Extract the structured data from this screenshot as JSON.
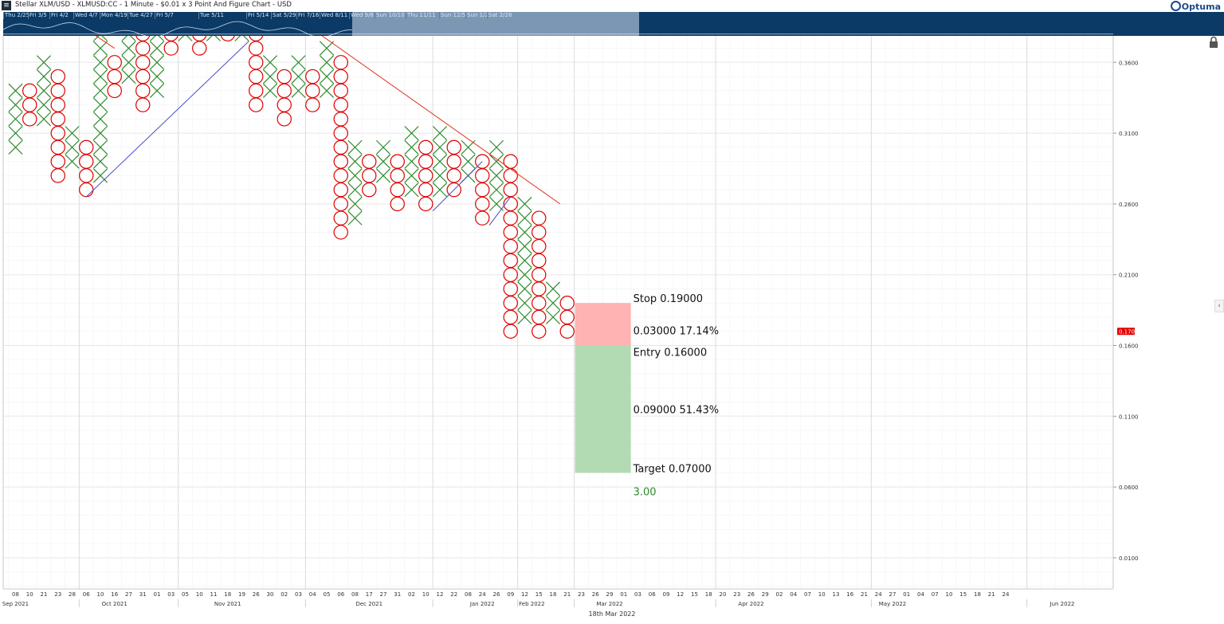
{
  "window": {
    "title": "Stellar XLM/USD - XLMUSD:CC - 1 Minute - $0.01 x 3 Point And Figure Chart - USD",
    "logo": "Optuma"
  },
  "navigator": {
    "labels": [
      "Thu 2/25",
      "Fri 3/5",
      "Fri 4/2",
      "Wed 4/7",
      "Mon 4/19",
      "Tue 4/27",
      "Fri 5/7",
      "Tue 5/11",
      "Fri 5/14",
      "Sat 5/29",
      "Fri 7/16",
      "Wed 8/11",
      "Wed 9/8",
      "Sun 10/10",
      "Thu 11/11",
      "Sun 12/5",
      "Sun 1/2",
      "Sat 2/26"
    ],
    "colors": {
      "background": "#0b3a66",
      "window": "#7b97b3"
    }
  },
  "footer": {
    "date": "18th Mar 2022"
  },
  "icons": {
    "lock": "lock-icon",
    "collapse": "chevron-left-icon",
    "app": "app-menu-icon"
  },
  "chart_data": {
    "type": "point-and-figure",
    "box_size": 0.01,
    "reversal": 3,
    "title": "Stellar XLM/USD - XLMUSD:CC - 1 Minute - $0.01 x 3 Point And Figure Chart - USD",
    "ylim": [
      -0.02,
      0.38
    ],
    "y_ticks": [
      "0.3600",
      "0.3100",
      "0.2600",
      "0.2100",
      "0.1600",
      "0.1100",
      "0.0600",
      "0.0100"
    ],
    "y_tick_values": [
      0.36,
      0.31,
      0.26,
      0.21,
      0.16,
      0.11,
      0.06,
      0.01
    ],
    "x_day_ticks": [
      "08",
      "10",
      "21",
      "23",
      "28",
      "06",
      "10",
      "16",
      "27",
      "31",
      "01",
      "03",
      "05",
      "10",
      "11",
      "18",
      "19",
      "26",
      "30",
      "02",
      "03",
      "04",
      "05",
      "06",
      "08",
      "17",
      "27",
      "31",
      "02",
      "10",
      "12",
      "22",
      "08",
      "24",
      "26",
      "09",
      "12",
      "15",
      "18",
      "21",
      "23",
      "26",
      "29",
      "01",
      "03",
      "06",
      "09",
      "12",
      "15",
      "18",
      "20",
      "23",
      "26",
      "29",
      "02",
      "04",
      "07",
      "10",
      "13",
      "16",
      "21",
      "24",
      "27",
      "01",
      "04",
      "07",
      "10",
      "15",
      "18",
      "21",
      "24"
    ],
    "x_month_ticks": [
      {
        "label": "Sep 2021",
        "col": 0
      },
      {
        "label": "Oct 2021",
        "col": 7
      },
      {
        "label": "Nov 2021",
        "col": 15
      },
      {
        "label": "Dec 2021",
        "col": 25
      },
      {
        "label": "Jan 2022",
        "col": 33
      },
      {
        "label": "Feb 2022",
        "col": 36.5
      },
      {
        "label": "Mar 2022",
        "col": 42
      },
      {
        "label": "Apr 2022",
        "col": 52
      },
      {
        "label": "May 2022",
        "col": 62
      },
      {
        "label": "Jun 2022",
        "col": 74
      }
    ],
    "columns": [
      {
        "type": "X",
        "low": 0.3,
        "high": 0.34
      },
      {
        "type": "O",
        "low": 0.32,
        "high": 0.34
      },
      {
        "type": "X",
        "low": 0.32,
        "high": 0.36
      },
      {
        "type": "O",
        "low": 0.28,
        "high": 0.35
      },
      {
        "type": "X",
        "low": 0.29,
        "high": 0.31
      },
      {
        "type": "O",
        "low": 0.27,
        "high": 0.3
      },
      {
        "type": "X",
        "low": 0.28,
        "high": 0.38
      },
      {
        "type": "O",
        "low": 0.34,
        "high": 0.36
      },
      {
        "type": "X",
        "low": 0.35,
        "high": 0.38
      },
      {
        "type": "O",
        "low": 0.33,
        "high": 0.38
      },
      {
        "type": "X",
        "low": 0.34,
        "high": 0.38
      },
      {
        "type": "O",
        "low": 0.37,
        "high": 0.38
      },
      {
        "type": "X",
        "low": 0.38,
        "high": 0.38
      },
      {
        "type": "O",
        "low": 0.37,
        "high": 0.38
      },
      {
        "type": "X",
        "low": 0.38,
        "high": 0.38
      },
      {
        "type": "O",
        "low": 0.38,
        "high": 0.38
      },
      {
        "type": "X",
        "low": 0.38,
        "high": 0.38
      },
      {
        "type": "O",
        "low": 0.33,
        "high": 0.38
      },
      {
        "type": "X",
        "low": 0.34,
        "high": 0.36
      },
      {
        "type": "O",
        "low": 0.32,
        "high": 0.35
      },
      {
        "type": "X",
        "low": 0.34,
        "high": 0.36
      },
      {
        "type": "O",
        "low": 0.33,
        "high": 0.35
      },
      {
        "type": "X",
        "low": 0.34,
        "high": 0.37
      },
      {
        "type": "O",
        "low": 0.24,
        "high": 0.36
      },
      {
        "type": "X",
        "low": 0.25,
        "high": 0.3
      },
      {
        "type": "O",
        "low": 0.27,
        "high": 0.29
      },
      {
        "type": "X",
        "low": 0.28,
        "high": 0.3
      },
      {
        "type": "O",
        "low": 0.26,
        "high": 0.29
      },
      {
        "type": "X",
        "low": 0.27,
        "high": 0.31
      },
      {
        "type": "O",
        "low": 0.26,
        "high": 0.3
      },
      {
        "type": "X",
        "low": 0.27,
        "high": 0.31
      },
      {
        "type": "O",
        "low": 0.27,
        "high": 0.3
      },
      {
        "type": "X",
        "low": 0.28,
        "high": 0.3
      },
      {
        "type": "O",
        "low": 0.25,
        "high": 0.29
      },
      {
        "type": "X",
        "low": 0.26,
        "high": 0.3
      },
      {
        "type": "O",
        "low": 0.17,
        "high": 0.29
      },
      {
        "type": "X",
        "low": 0.18,
        "high": 0.26
      },
      {
        "type": "O",
        "low": 0.17,
        "high": 0.25
      },
      {
        "type": "X",
        "low": 0.18,
        "high": 0.2
      },
      {
        "type": "O",
        "low": 0.17,
        "high": 0.19
      }
    ],
    "trend_lines": [
      {
        "kind": "support",
        "color": "#4b4bcc",
        "from": {
          "col": 5,
          "y": 0.265
        },
        "to": {
          "col": 16.5,
          "y": 0.375
        }
      },
      {
        "kind": "resistance",
        "color": "#e0341e",
        "from": {
          "col": 5.5,
          "y": 0.38
        },
        "to": {
          "col": 7,
          "y": 0.37
        }
      },
      {
        "kind": "resistance",
        "color": "#e0341e",
        "from": {
          "col": 21.5,
          "y": 0.38
        },
        "to": {
          "col": 38.5,
          "y": 0.26
        }
      },
      {
        "kind": "support",
        "color": "#4b4bcc",
        "from": {
          "col": 29.5,
          "y": 0.255
        },
        "to": {
          "col": 33,
          "y": 0.29
        }
      },
      {
        "kind": "support",
        "color": "#4b4bcc",
        "from": {
          "col": 33.5,
          "y": 0.245
        },
        "to": {
          "col": 35,
          "y": 0.265
        }
      }
    ],
    "trade": {
      "stop_text": "Stop   0.19000",
      "risk_text": "0.03000   17.14%",
      "entry_text": "Entry   0.16000",
      "reward_text": "0.09000   51.43%",
      "target_text": "Target   0.07000",
      "ratio_text": "3.00",
      "stop": 0.19,
      "entry": 0.16,
      "target": 0.07,
      "start_col": 39.5,
      "end_col": 43.5,
      "risk_color": "#ffb3b3",
      "reward_color": "#b3dbb3",
      "ratio_color": "#2e8b2e"
    },
    "last_price": {
      "label": "0.1700",
      "value": 0.17,
      "color": "#e00000"
    },
    "x_color": "#2e8b2e",
    "o_color": "#e00000",
    "grid": true
  }
}
